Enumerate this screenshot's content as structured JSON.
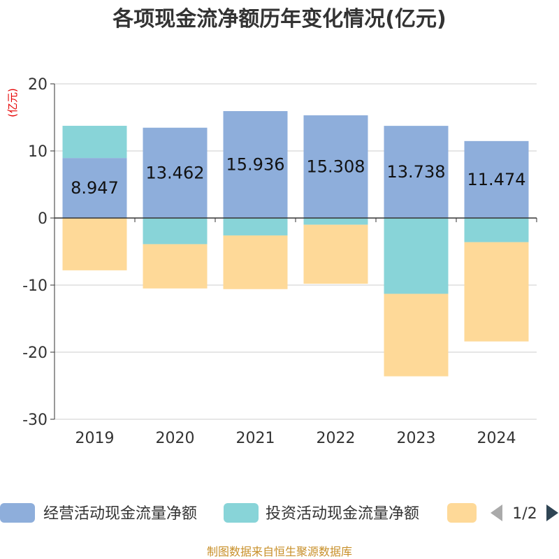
{
  "chart_data": {
    "type": "bar",
    "stacked": true,
    "title": "各项现金流净额历年变化情况(亿元)",
    "ylabel": "(亿元)",
    "ylim": [
      -30,
      20
    ],
    "yticks": [
      20,
      10,
      0,
      -10,
      -20,
      -30
    ],
    "grid": true,
    "categories": [
      "2019",
      "2020",
      "2021",
      "2022",
      "2023",
      "2024"
    ],
    "series": [
      {
        "name": "经营活动现金流量净额",
        "color": "#8eaedb",
        "values": [
          8.947,
          13.462,
          15.936,
          15.308,
          13.738,
          11.474
        ],
        "labels": [
          "8.947",
          "13.462",
          "15.936",
          "15.308",
          "13.738",
          "11.474"
        ]
      },
      {
        "name": "投资活动现金流量净额",
        "color": "#88d4d8",
        "values": [
          4.8,
          -3.9,
          -2.6,
          -1.0,
          -11.3,
          -3.6
        ]
      },
      {
        "color": "#fed998",
        "values": [
          -7.8,
          -6.6,
          -8.0,
          -8.8,
          -12.3,
          -14.8
        ]
      }
    ],
    "legend": {
      "placement": "bottom",
      "page": "1/2"
    }
  },
  "source": "制图数据来自恒生聚源数据库"
}
